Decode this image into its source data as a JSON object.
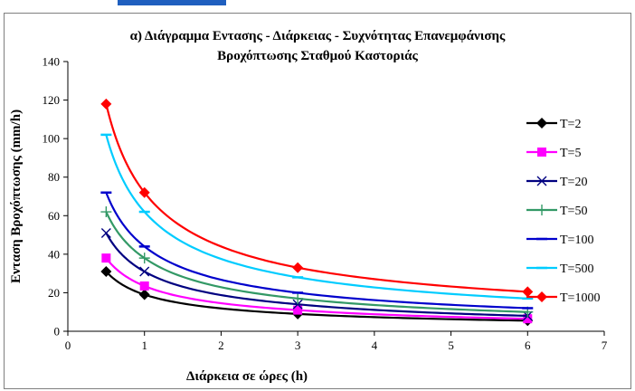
{
  "chart_data": {
    "type": "line",
    "title_line1": "α) Διάγραμμα Εντασης - Διάρκειας - Συχνότητας Επανεμφάνισης",
    "title_line2": "Βροχόπτωσης Σταθμού Καστοριάς",
    "xlabel": "Διάρκεια σε ώρες (h)",
    "ylabel": "Ενταση Βροχόπτωσης (mm/h)",
    "xlim": [
      0,
      7
    ],
    "ylim": [
      0,
      140
    ],
    "xticks": [
      "0",
      "1",
      "2",
      "3",
      "4",
      "5",
      "6",
      "7"
    ],
    "yticks": [
      "0",
      "20",
      "40",
      "60",
      "80",
      "100",
      "120",
      "140"
    ],
    "grid": false,
    "legend_position": "right",
    "x": [
      0.5,
      1,
      3,
      6
    ],
    "series": [
      {
        "name": "T=2",
        "values": [
          31,
          19,
          9,
          5.5
        ],
        "color": "#000000",
        "marker": "diamond"
      },
      {
        "name": "T=5",
        "values": [
          38,
          23.5,
          11,
          6.5
        ],
        "color": "#ff00ff",
        "marker": "square"
      },
      {
        "name": "T=20",
        "values": [
          51,
          31,
          14,
          8
        ],
        "color": "#000080",
        "marker": "x"
      },
      {
        "name": "T=50",
        "values": [
          62,
          38,
          17,
          10
        ],
        "color": "#339966",
        "marker": "plus"
      },
      {
        "name": "T=100",
        "values": [
          72,
          44,
          20,
          12
        ],
        "color": "#0000cc",
        "marker": "dash"
      },
      {
        "name": "T=500",
        "values": [
          102,
          62,
          28,
          17
        ],
        "color": "#00ccff",
        "marker": "dash"
      },
      {
        "name": "T=1000",
        "values": [
          118,
          72,
          33,
          20.5
        ],
        "color": "#ff0000",
        "marker": "diamond"
      }
    ]
  }
}
